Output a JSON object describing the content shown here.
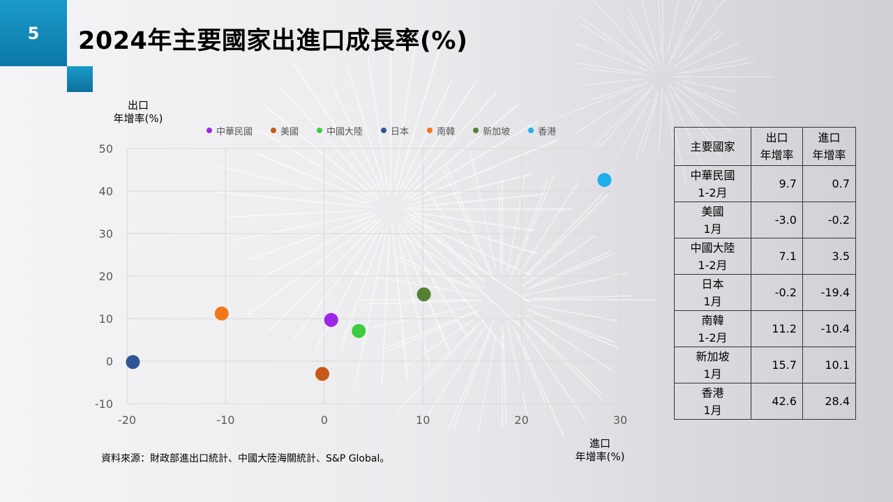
{
  "slide": {
    "number": "5",
    "title": "2024年主要國家出進口成長率(%)"
  },
  "source": "資料來源：財政部進出口統計、中國大陸海關統計、S&P  Global。",
  "axis": {
    "y_title_line1": "出口",
    "y_title_line2": "年增率(%)",
    "x_title_line1": "進口",
    "x_title_line2": "年增率(%)"
  },
  "chart_data": {
    "type": "scatter",
    "xlabel": "進口 年增率(%)",
    "ylabel": "出口 年增率(%)",
    "xlim": [
      -20,
      30
    ],
    "ylim": [
      -10,
      50
    ],
    "x_ticks": [
      -20,
      -10,
      0,
      10,
      20,
      30
    ],
    "y_ticks": [
      -10,
      0,
      10,
      20,
      30,
      40,
      50
    ],
    "grid": true,
    "legend_position": "top",
    "series": [
      {
        "name": "中華民國",
        "color": "#9b27e8",
        "x": 0.7,
        "y": 9.7
      },
      {
        "name": "美國",
        "color": "#c65a17",
        "x": -0.2,
        "y": -3.0
      },
      {
        "name": "中國大陸",
        "color": "#3dcc3d",
        "x": 3.5,
        "y": 7.1
      },
      {
        "name": "日本",
        "color": "#2f5597",
        "x": -19.4,
        "y": -0.2
      },
      {
        "name": "南韓",
        "color": "#f0771b",
        "x": -10.4,
        "y": 11.2
      },
      {
        "name": "新加坡",
        "color": "#548235",
        "x": 10.1,
        "y": 15.7
      },
      {
        "name": "香港",
        "color": "#1fb0ea",
        "x": 28.4,
        "y": 42.6
      }
    ]
  },
  "table": {
    "headers": [
      {
        "line1": "主要國家",
        "line2": ""
      },
      {
        "line1": "出口",
        "line2": "年增率"
      },
      {
        "line1": "進口",
        "line2": "年增率"
      }
    ],
    "rows": [
      {
        "country": "中華民國",
        "period": "1-2月",
        "export": "9.7",
        "import": "0.7"
      },
      {
        "country": "美國",
        "period": "1月",
        "export": "-3.0",
        "import": "-0.2"
      },
      {
        "country": "中國大陸",
        "period": "1-2月",
        "export": "7.1",
        "import": "3.5"
      },
      {
        "country": "日本",
        "period": "1月",
        "export": "-0.2",
        "import": "-19.4"
      },
      {
        "country": "南韓",
        "period": "1-2月",
        "export": "11.2",
        "import": "-10.4"
      },
      {
        "country": "新加坡",
        "period": "1月",
        "export": "15.7",
        "import": "10.1"
      },
      {
        "country": "香港",
        "period": "1月",
        "export": "42.6",
        "import": "28.4"
      }
    ]
  }
}
